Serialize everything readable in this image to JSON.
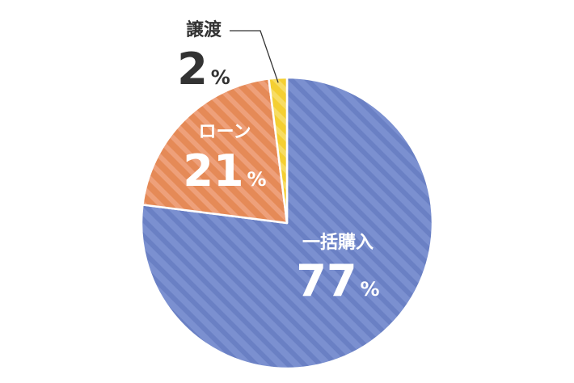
{
  "chart_data": {
    "type": "pie",
    "slices": [
      {
        "label": "一括購入",
        "value": 77,
        "number": "77",
        "unit": "%",
        "color": "#7b90d0",
        "stripe": "#6a80c4"
      },
      {
        "label": "ローン",
        "value": 21,
        "number": "21",
        "unit": "%",
        "color": "#e58a57",
        "stripe": "#eea07a"
      },
      {
        "label": "譲渡",
        "value": 2,
        "number": "2",
        "unit": "%",
        "color": "#f4cf32",
        "stripe": "#f7dc63"
      }
    ],
    "label_text_colors": {
      "inside": "#ffffff",
      "outside": "#333333"
    },
    "leader_line_color": "#333333",
    "pattern": "diagonal-stripes"
  }
}
